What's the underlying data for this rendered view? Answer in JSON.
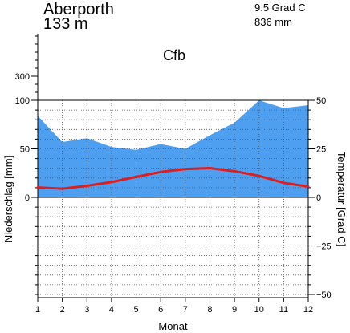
{
  "header": {
    "station": "Aberporth",
    "elevation": "133 m",
    "annual_temp": "9.5 Grad C",
    "annual_precip": "836 mm",
    "climate_class": "Cfb"
  },
  "chart_data": {
    "type": "area",
    "xlabel": "Monat",
    "ylabel_left": "Niederschlag [mm]",
    "ylabel_right": "Temperatur [Grad C]",
    "x": [
      1,
      2,
      3,
      4,
      5,
      6,
      7,
      8,
      9,
      10,
      11,
      12
    ],
    "x_tick_labels": [
      "1",
      "2",
      "3",
      "4",
      "5",
      "6",
      "7",
      "8",
      "9",
      "10",
      "11",
      "12"
    ],
    "precip_ylim": [
      0,
      100
    ],
    "precip_tick_labels": [
      "0",
      "50",
      "100"
    ],
    "precip_upper_tick_labels": [
      "300"
    ],
    "temp_ylim": [
      -50,
      50
    ],
    "temp_tick_labels": [
      "−50",
      "−25",
      "0",
      "25",
      "50"
    ],
    "grid": true,
    "colors": {
      "precipitation": "#4f9ff0",
      "temperature": "#dd1e1e"
    },
    "series": [
      {
        "key": "precipitation",
        "values": [
          84,
          57,
          61,
          52,
          49,
          55,
          50,
          64,
          77,
          100,
          92,
          95
        ]
      },
      {
        "key": "temperature",
        "values": [
          5.1,
          4.5,
          6.0,
          7.9,
          10.6,
          13.1,
          14.6,
          15.1,
          13.5,
          11.1,
          7.5,
          5.6
        ]
      }
    ]
  }
}
